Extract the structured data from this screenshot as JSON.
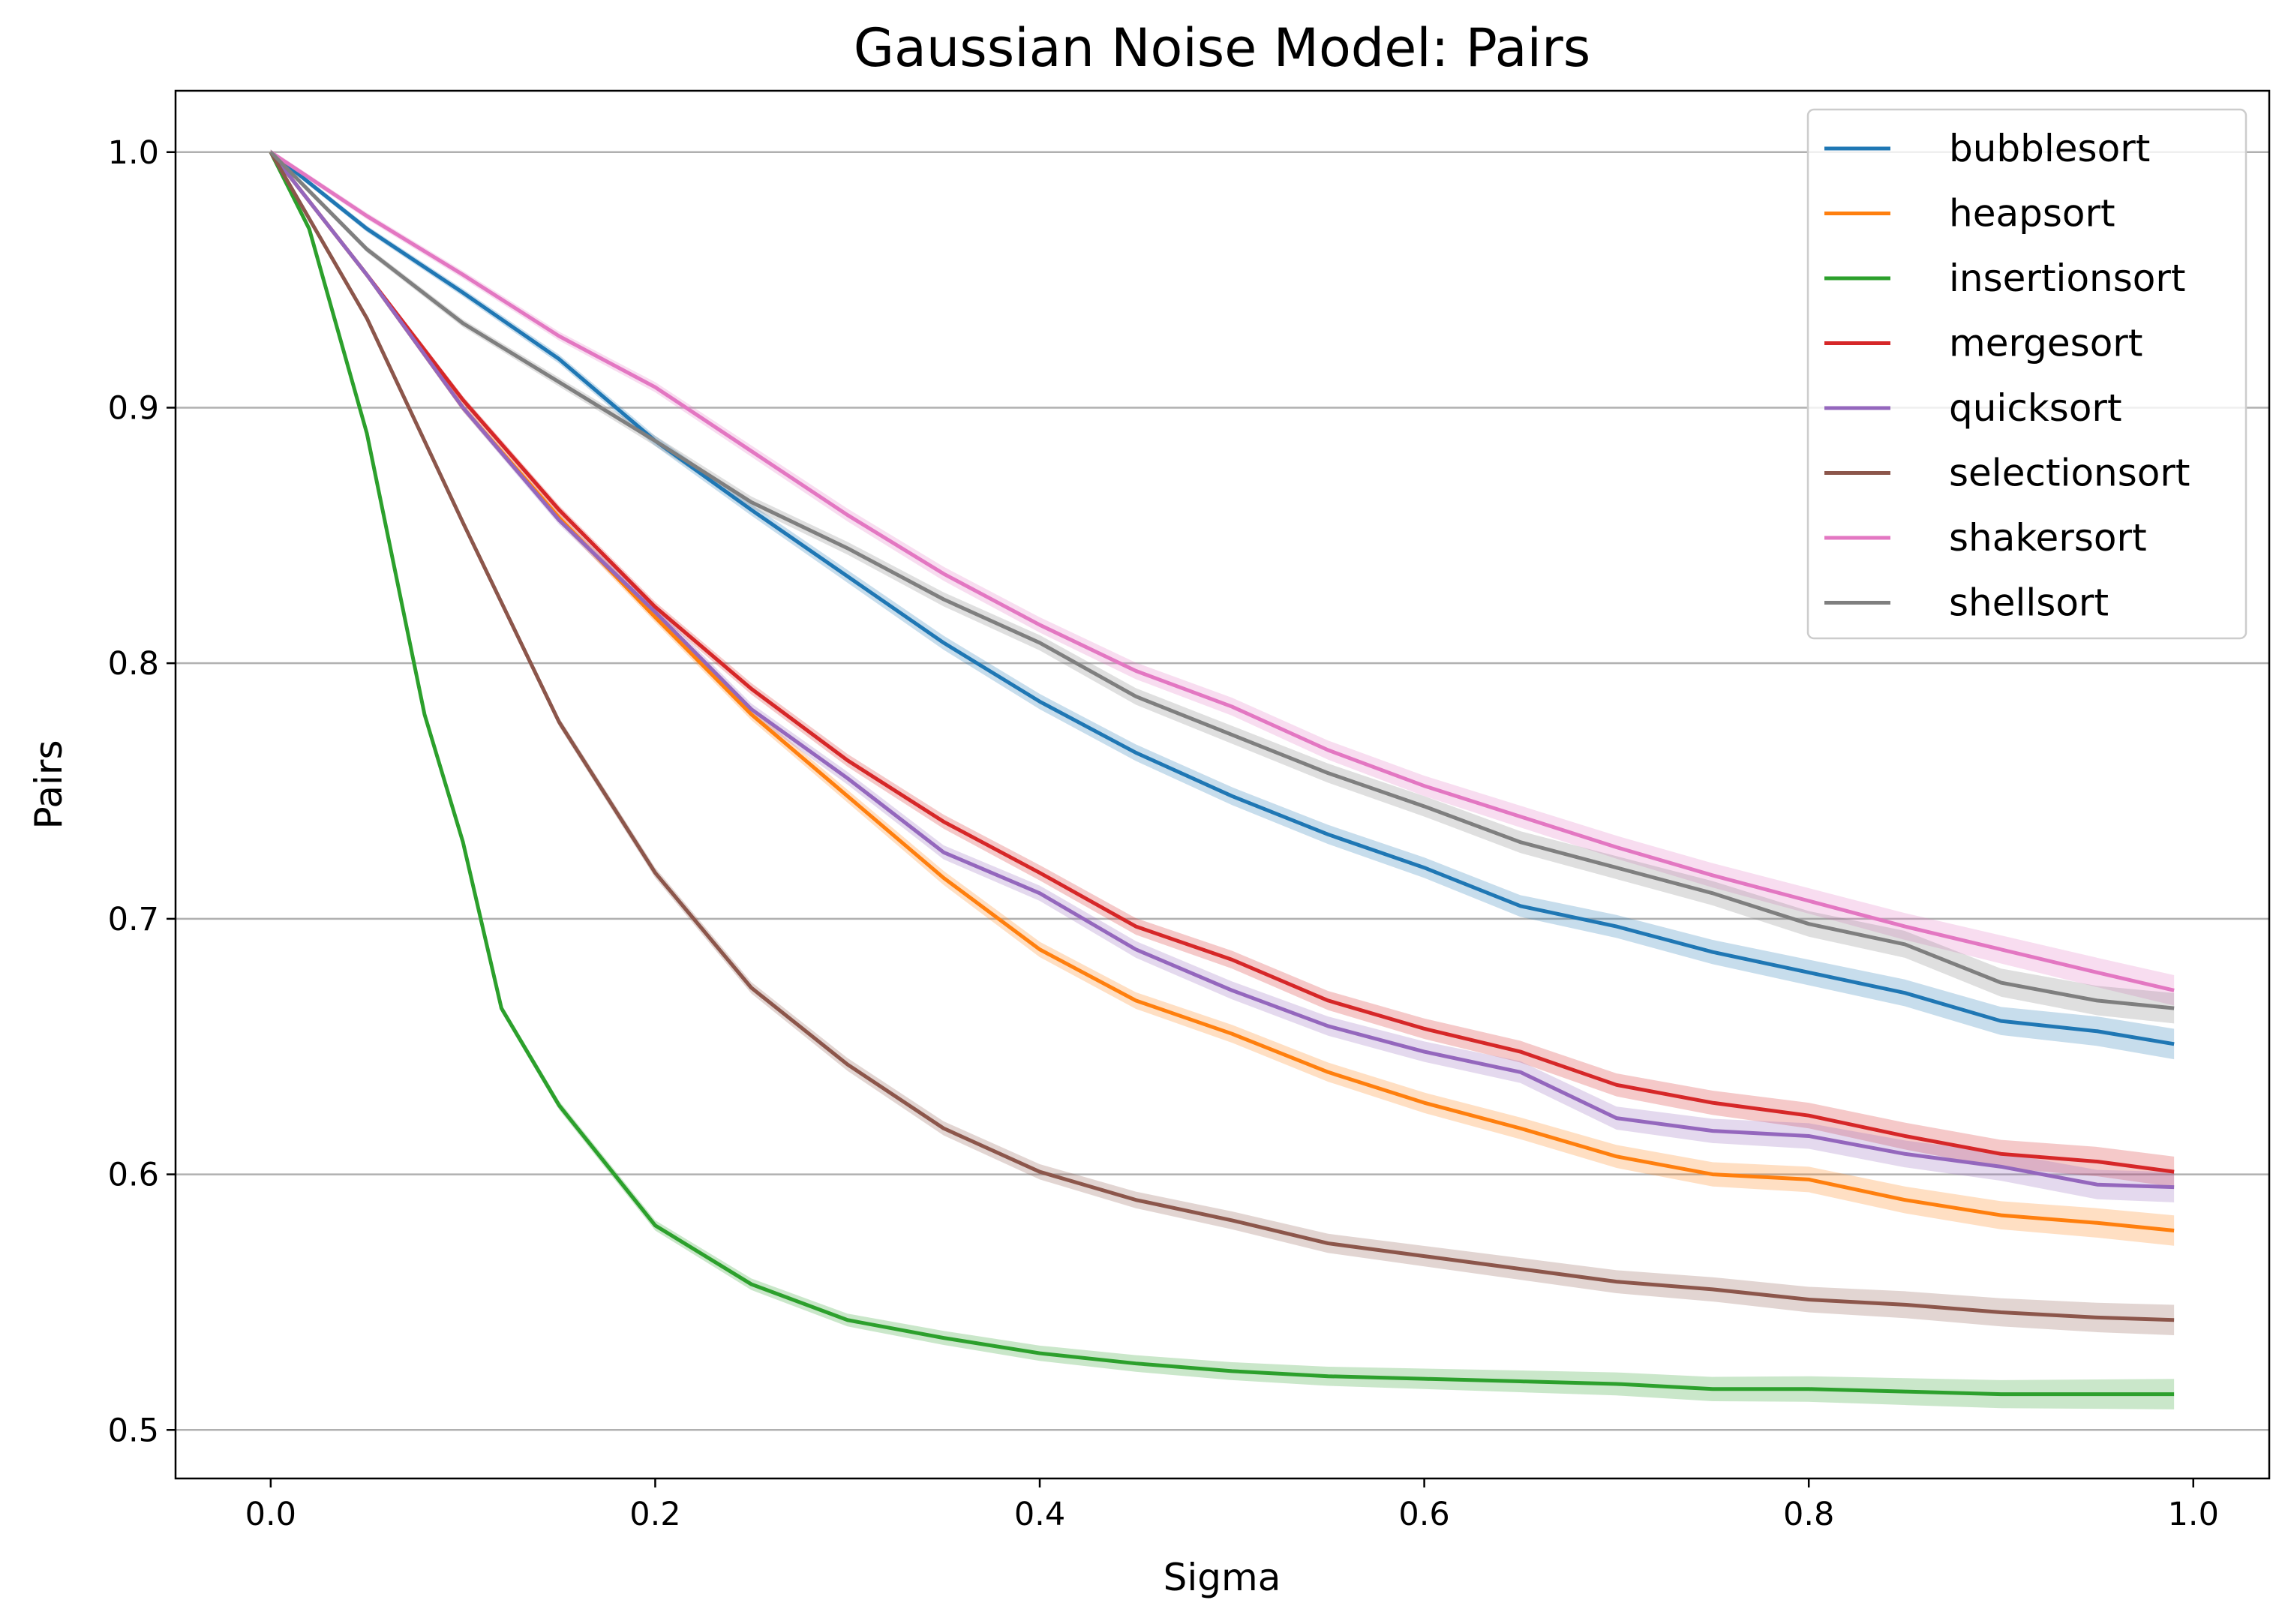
{
  "chart_data": {
    "type": "line",
    "title": "Gaussian Noise Model: Pairs",
    "xlabel": "Sigma",
    "ylabel": "Pairs",
    "xlim": [
      -0.0495,
      1.0395
    ],
    "ylim": [
      0.481,
      1.024
    ],
    "xticks": [
      0.0,
      0.2,
      0.4,
      0.6,
      0.8,
      1.0
    ],
    "xtick_labels": [
      "0.0",
      "0.2",
      "0.4",
      "0.6",
      "0.8",
      "1.0"
    ],
    "yticks": [
      0.5,
      0.6,
      0.7,
      0.8,
      0.9,
      1.0
    ],
    "ytick_labels": [
      "0.5",
      "0.6",
      "0.7",
      "0.8",
      "0.9",
      "1.0"
    ],
    "grid": "y-major",
    "legend_position": "top-right",
    "confidence_bands": true,
    "series": [
      {
        "name": "bubblesort",
        "color": "#1f77b4",
        "x": [
          0,
          0.05,
          0.1,
          0.15,
          0.2,
          0.25,
          0.3,
          0.35,
          0.4,
          0.45,
          0.5,
          0.55,
          0.6,
          0.65,
          0.7,
          0.75,
          0.8,
          0.85,
          0.9,
          0.95,
          0.99
        ],
        "y": [
          1.0,
          0.97,
          0.945,
          0.919,
          0.887,
          0.86,
          0.834,
          0.808,
          0.785,
          0.765,
          0.748,
          0.733,
          0.72,
          0.705,
          0.697,
          0.687,
          0.679,
          0.671,
          0.66,
          0.656,
          0.651
        ]
      },
      {
        "name": "heapsort",
        "color": "#ff7f0e",
        "x": [
          0,
          0.05,
          0.1,
          0.15,
          0.2,
          0.25,
          0.3,
          0.35,
          0.4,
          0.45,
          0.5,
          0.55,
          0.6,
          0.65,
          0.7,
          0.75,
          0.8,
          0.85,
          0.9,
          0.95,
          0.99
        ],
        "y": [
          1.0,
          0.952,
          0.9,
          0.857,
          0.818,
          0.78,
          0.748,
          0.716,
          0.688,
          0.668,
          0.655,
          0.64,
          0.628,
          0.618,
          0.607,
          0.6,
          0.598,
          0.59,
          0.584,
          0.581,
          0.578
        ]
      },
      {
        "name": "insertionsort",
        "color": "#2ca02c",
        "x": [
          0,
          0.02,
          0.05,
          0.08,
          0.1,
          0.12,
          0.15,
          0.2,
          0.25,
          0.3,
          0.35,
          0.4,
          0.45,
          0.5,
          0.55,
          0.6,
          0.65,
          0.7,
          0.75,
          0.8,
          0.85,
          0.9,
          0.95,
          0.99
        ],
        "y": [
          1.0,
          0.97,
          0.89,
          0.78,
          0.73,
          0.665,
          0.627,
          0.58,
          0.557,
          0.543,
          0.536,
          0.53,
          0.526,
          0.523,
          0.521,
          0.52,
          0.519,
          0.518,
          0.516,
          0.516,
          0.515,
          0.514,
          0.514,
          0.514
        ]
      },
      {
        "name": "mergesort",
        "color": "#d62728",
        "x": [
          0,
          0.05,
          0.1,
          0.15,
          0.2,
          0.25,
          0.3,
          0.35,
          0.4,
          0.45,
          0.5,
          0.55,
          0.6,
          0.65,
          0.7,
          0.75,
          0.8,
          0.85,
          0.9,
          0.95,
          0.99
        ],
        "y": [
          1.0,
          0.952,
          0.903,
          0.86,
          0.822,
          0.79,
          0.762,
          0.738,
          0.718,
          0.697,
          0.684,
          0.668,
          0.657,
          0.648,
          0.635,
          0.628,
          0.623,
          0.615,
          0.608,
          0.605,
          0.601
        ]
      },
      {
        "name": "quicksort",
        "color": "#9467bd",
        "x": [
          0,
          0.05,
          0.1,
          0.15,
          0.2,
          0.25,
          0.3,
          0.35,
          0.4,
          0.45,
          0.5,
          0.55,
          0.6,
          0.65,
          0.7,
          0.75,
          0.8,
          0.85,
          0.9,
          0.95,
          0.99
        ],
        "y": [
          1.0,
          0.952,
          0.9,
          0.856,
          0.82,
          0.782,
          0.755,
          0.726,
          0.71,
          0.688,
          0.672,
          0.658,
          0.648,
          0.64,
          0.622,
          0.617,
          0.615,
          0.608,
          0.603,
          0.596,
          0.595
        ]
      },
      {
        "name": "selectionsort",
        "color": "#8c564b",
        "x": [
          0,
          0.05,
          0.1,
          0.15,
          0.2,
          0.25,
          0.3,
          0.35,
          0.4,
          0.45,
          0.5,
          0.55,
          0.6,
          0.65,
          0.7,
          0.75,
          0.8,
          0.85,
          0.9,
          0.95,
          0.99
        ],
        "y": [
          1.0,
          0.935,
          0.855,
          0.777,
          0.718,
          0.673,
          0.643,
          0.618,
          0.601,
          0.59,
          0.582,
          0.573,
          0.568,
          0.563,
          0.558,
          0.555,
          0.551,
          0.549,
          0.546,
          0.544,
          0.543
        ]
      },
      {
        "name": "shakersort",
        "color": "#e377c2",
        "x": [
          0,
          0.05,
          0.1,
          0.15,
          0.2,
          0.25,
          0.3,
          0.35,
          0.4,
          0.45,
          0.5,
          0.55,
          0.6,
          0.65,
          0.7,
          0.75,
          0.8,
          0.85,
          0.9,
          0.95,
          0.99
        ],
        "y": [
          1.0,
          0.975,
          0.952,
          0.928,
          0.908,
          0.883,
          0.858,
          0.835,
          0.815,
          0.797,
          0.783,
          0.766,
          0.752,
          0.74,
          0.728,
          0.717,
          0.707,
          0.697,
          0.688,
          0.679,
          0.672
        ]
      },
      {
        "name": "shellsort",
        "color": "#7f7f7f",
        "x": [
          0,
          0.05,
          0.1,
          0.15,
          0.2,
          0.25,
          0.3,
          0.35,
          0.4,
          0.45,
          0.5,
          0.55,
          0.6,
          0.65,
          0.7,
          0.75,
          0.8,
          0.85,
          0.9,
          0.95,
          0.99
        ],
        "y": [
          1.0,
          0.962,
          0.933,
          0.91,
          0.887,
          0.863,
          0.845,
          0.825,
          0.808,
          0.787,
          0.772,
          0.757,
          0.744,
          0.73,
          0.72,
          0.71,
          0.698,
          0.69,
          0.675,
          0.668,
          0.665
        ]
      }
    ]
  }
}
